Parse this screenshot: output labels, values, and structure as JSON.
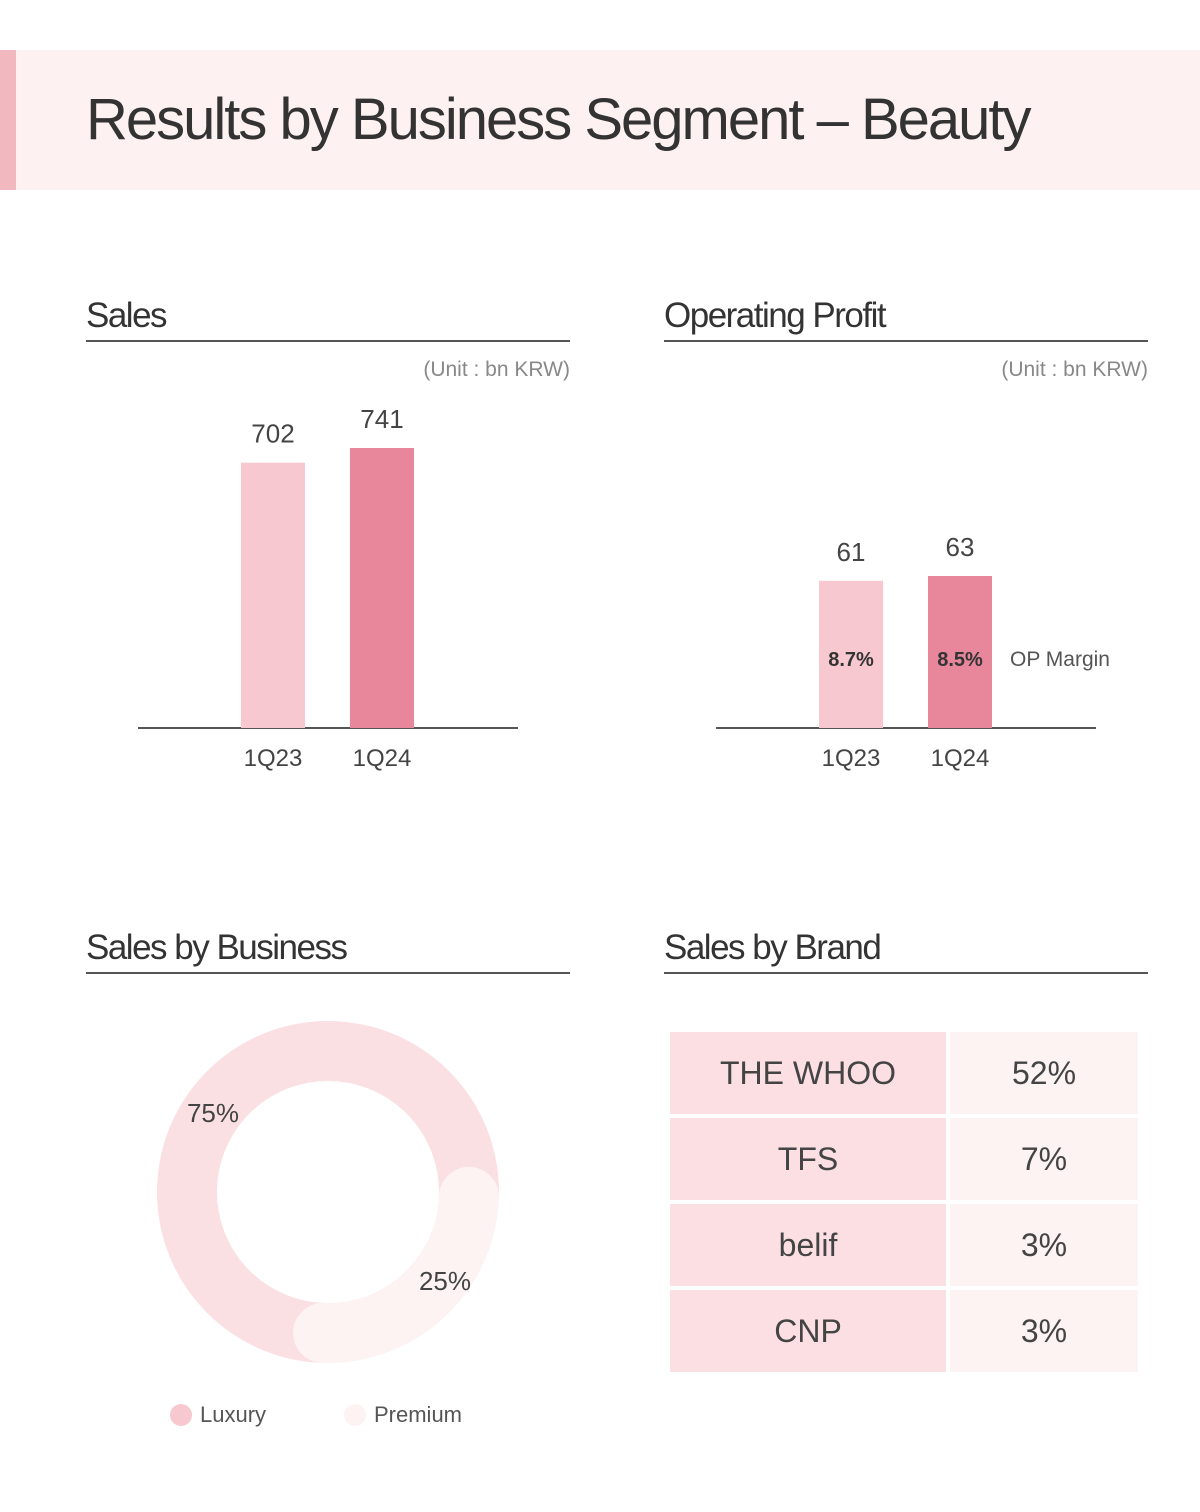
{
  "title": "Results by Business Segment – Beauty",
  "colors": {
    "accent": "#f2b8c0",
    "bar_1q23": "#f7c8cf",
    "bar_1q24": "#e8879b",
    "luxury": "#fbe0e3",
    "premium": "#fdf3f3",
    "band": "#fdf1f1"
  },
  "chart_data": [
    {
      "type": "bar",
      "title": "Sales",
      "unit": "(Unit : bn KRW)",
      "categories": [
        "1Q23",
        "1Q24"
      ],
      "values": [
        702,
        741
      ]
    },
    {
      "type": "bar",
      "title": "Operating Profit",
      "unit": "(Unit : bn KRW)",
      "categories": [
        "1Q23",
        "1Q24"
      ],
      "values": [
        61,
        63
      ],
      "margins": [
        "8.7%",
        "8.5%"
      ],
      "margin_label": "OP Margin"
    },
    {
      "type": "pie",
      "title": "Sales by Business",
      "categories": [
        "Luxury",
        "Premium"
      ],
      "values": [
        75,
        25
      ],
      "labels": [
        "75%",
        "25%"
      ]
    },
    {
      "type": "table",
      "title": "Sales by Brand",
      "rows": [
        {
          "brand": "THE WHOO",
          "share": "52%"
        },
        {
          "brand": "TFS",
          "share": "7%"
        },
        {
          "brand": "belif",
          "share": "3%"
        },
        {
          "brand": "CNP",
          "share": "3%"
        }
      ]
    }
  ]
}
